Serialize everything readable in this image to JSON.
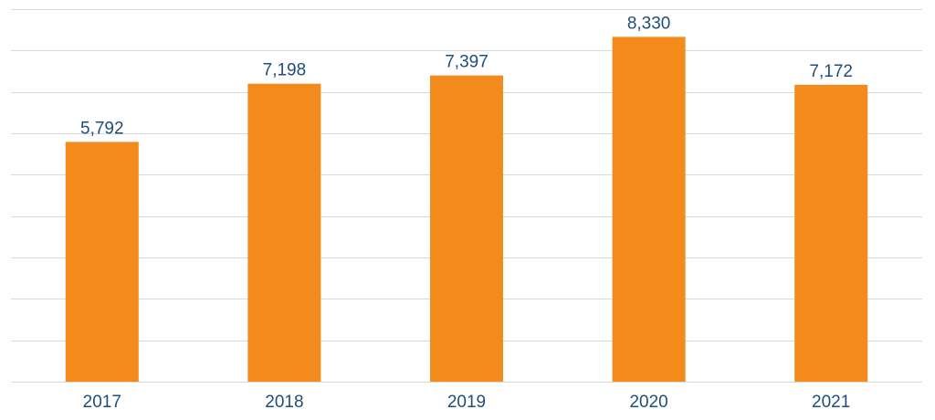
{
  "chart_data": {
    "type": "bar",
    "categories": [
      "2017",
      "2018",
      "2019",
      "2020",
      "2021"
    ],
    "values": [
      5792,
      7198,
      7397,
      8330,
      7172
    ],
    "data_labels": [
      "5,792",
      "7,198",
      "7,397",
      "8,330",
      "7,172"
    ],
    "title": "",
    "xlabel": "",
    "ylabel": "",
    "ylim": [
      0,
      9000
    ],
    "y_axis_labels_shown": false,
    "grid": true,
    "bar_color": "#f28a1c",
    "label_color": "#1f4e79",
    "grid_color": "#d9d9d9"
  }
}
